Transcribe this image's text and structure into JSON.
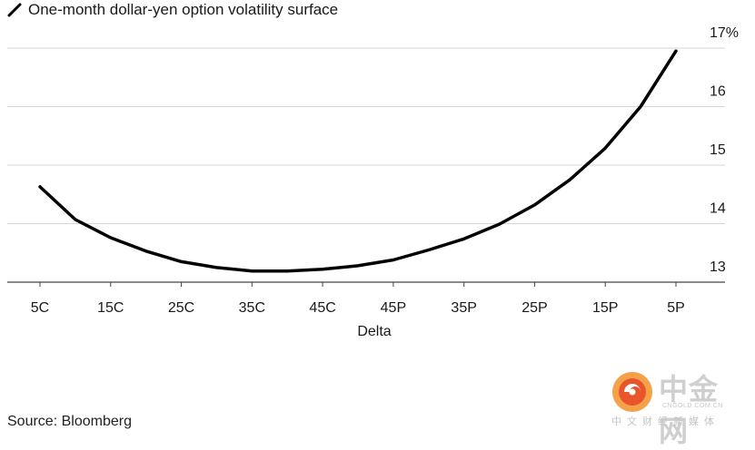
{
  "chart_data": {
    "type": "line",
    "title": "One-month dollar-yen option volatility surface",
    "xlabel": "Delta",
    "ylabel": "",
    "categories": [
      "5C",
      "15C",
      "25C",
      "35C",
      "45C",
      "45P",
      "35P",
      "25P",
      "15P",
      "5P"
    ],
    "x": [
      5,
      10,
      15,
      20,
      25,
      30,
      35,
      40,
      45,
      50,
      55,
      60,
      65,
      70,
      75,
      80,
      85,
      90,
      95
    ],
    "series": [
      {
        "name": "One-month dollar-yen option volatility surface",
        "color": "#000000",
        "y": [
          14.63,
          14.07,
          13.76,
          13.53,
          13.35,
          13.25,
          13.19,
          13.19,
          13.22,
          13.28,
          13.38,
          13.55,
          13.74,
          13.99,
          14.32,
          14.75,
          15.29,
          16.0,
          16.95
        ]
      }
    ],
    "ylim": [
      12.7,
      17.2
    ],
    "yticks": [
      13,
      14,
      15,
      16,
      17
    ],
    "ytick_labels": [
      "13",
      "14",
      "15",
      "16",
      "17%"
    ],
    "y_axis_position": "right",
    "grid": true,
    "legend": "top-left"
  },
  "footer": {
    "source": "Source: Bloomberg"
  },
  "watermark": {
    "name": "中金网",
    "url": "CNGOLD.COM.CN",
    "tagline": "中文财经新媒体"
  }
}
